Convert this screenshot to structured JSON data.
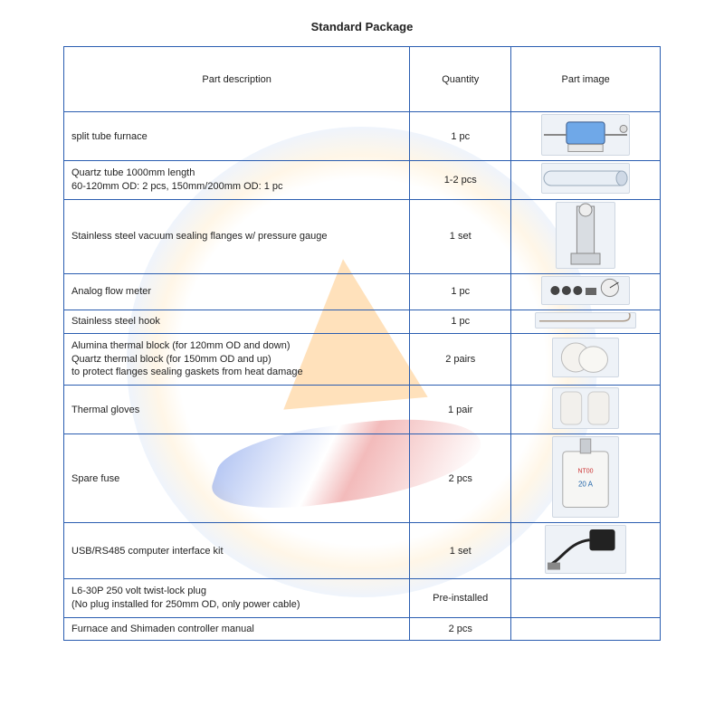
{
  "title": "Standard Package",
  "columns": {
    "desc": "Part description",
    "qty": "Quantity",
    "img": "Part image"
  },
  "rows": [
    {
      "desc": "split tube furnace",
      "qty": "1 pc",
      "imgH": 44,
      "imgW": 96,
      "icon": "furnace"
    },
    {
      "desc": "Quartz tube 1000mm length\n60-120mm OD: 2 pcs, 150mm/200mm OD: 1 pc",
      "qty": "1-2 pcs",
      "imgH": 32,
      "imgW": 96,
      "icon": "tube"
    },
    {
      "desc": "Stainless steel vacuum sealing flanges w/ pressure gauge",
      "qty": "1 set",
      "imgH": 72,
      "imgW": 64,
      "icon": "flange"
    },
    {
      "desc": "Analog flow meter",
      "qty": "1 pc",
      "imgH": 30,
      "imgW": 96,
      "icon": "meter"
    },
    {
      "desc": "Stainless steel hook",
      "qty": "1 pc",
      "imgH": 16,
      "imgW": 110,
      "icon": "hook"
    },
    {
      "desc": "Alumina thermal block (for 120mm OD and down)\nQuartz thermal block (for 150mm OD and up)\nto protect flanges sealing gaskets from heat damage",
      "qty": "2 pairs",
      "imgH": 42,
      "imgW": 72,
      "icon": "block"
    },
    {
      "desc": "Thermal gloves",
      "qty": "1 pair",
      "imgH": 44,
      "imgW": 72,
      "icon": "gloves"
    },
    {
      "desc": "Spare fuse",
      "qty": "2 pcs",
      "imgH": 88,
      "imgW": 72,
      "icon": "fuse"
    },
    {
      "desc": "USB/RS485 computer interface kit",
      "qty": "1 set",
      "imgH": 52,
      "imgW": 88,
      "icon": "usb"
    },
    {
      "desc": "L6-30P 250 volt twist-lock plug\n(No plug installed for 250mm OD, only power cable)",
      "qty": "Pre-installed",
      "imgH": 0,
      "imgW": 0,
      "icon": ""
    },
    {
      "desc": "Furnace and Shimaden controller manual",
      "qty": "2 pcs",
      "imgH": 0,
      "imgW": 0,
      "icon": ""
    }
  ],
  "style": {
    "border_color": "#2a5db0",
    "font_size_body": 11,
    "font_size_title": 13,
    "text_color": "#222222",
    "page_bg": "#ffffff"
  }
}
